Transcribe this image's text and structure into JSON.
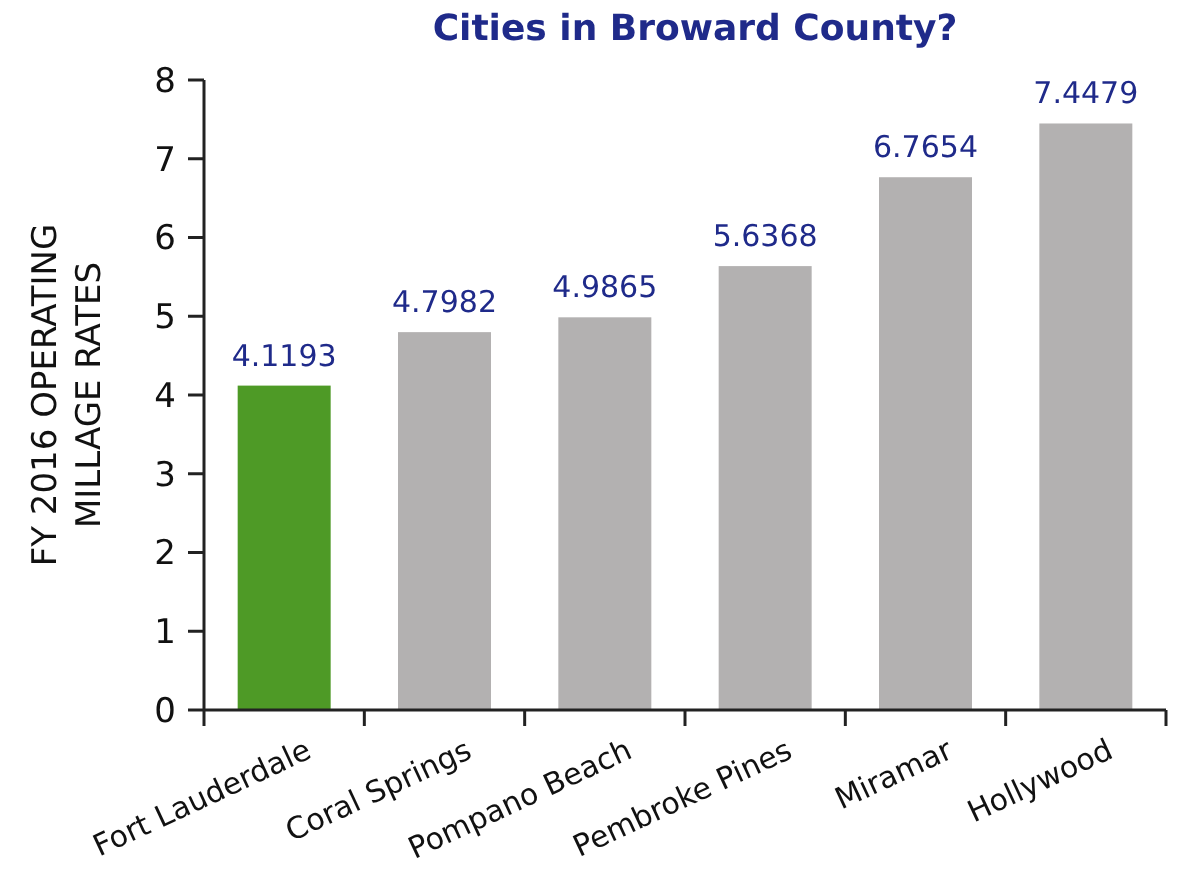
{
  "chart_data": {
    "type": "bar",
    "title": "Cities in Broward County?",
    "ylabel": "FY 2016 OPERATING\nMILLAGE RATES",
    "categories": [
      "Fort Lauderdale",
      "Coral Springs",
      "Pompano Beach",
      "Pembroke Pines",
      "Miramar",
      "Hollywood"
    ],
    "values": [
      4.1193,
      4.7982,
      4.9865,
      5.6368,
      6.7654,
      7.4479
    ],
    "colors": [
      "#4e9a26",
      "#b3b1b1",
      "#b3b1b1",
      "#b3b1b1",
      "#b3b1b1",
      "#b3b1b1"
    ],
    "ylim": [
      0,
      8
    ],
    "yticks": [
      0,
      1,
      2,
      3,
      4,
      5,
      6,
      7,
      8
    ],
    "data_labels": true,
    "grid": false
  }
}
